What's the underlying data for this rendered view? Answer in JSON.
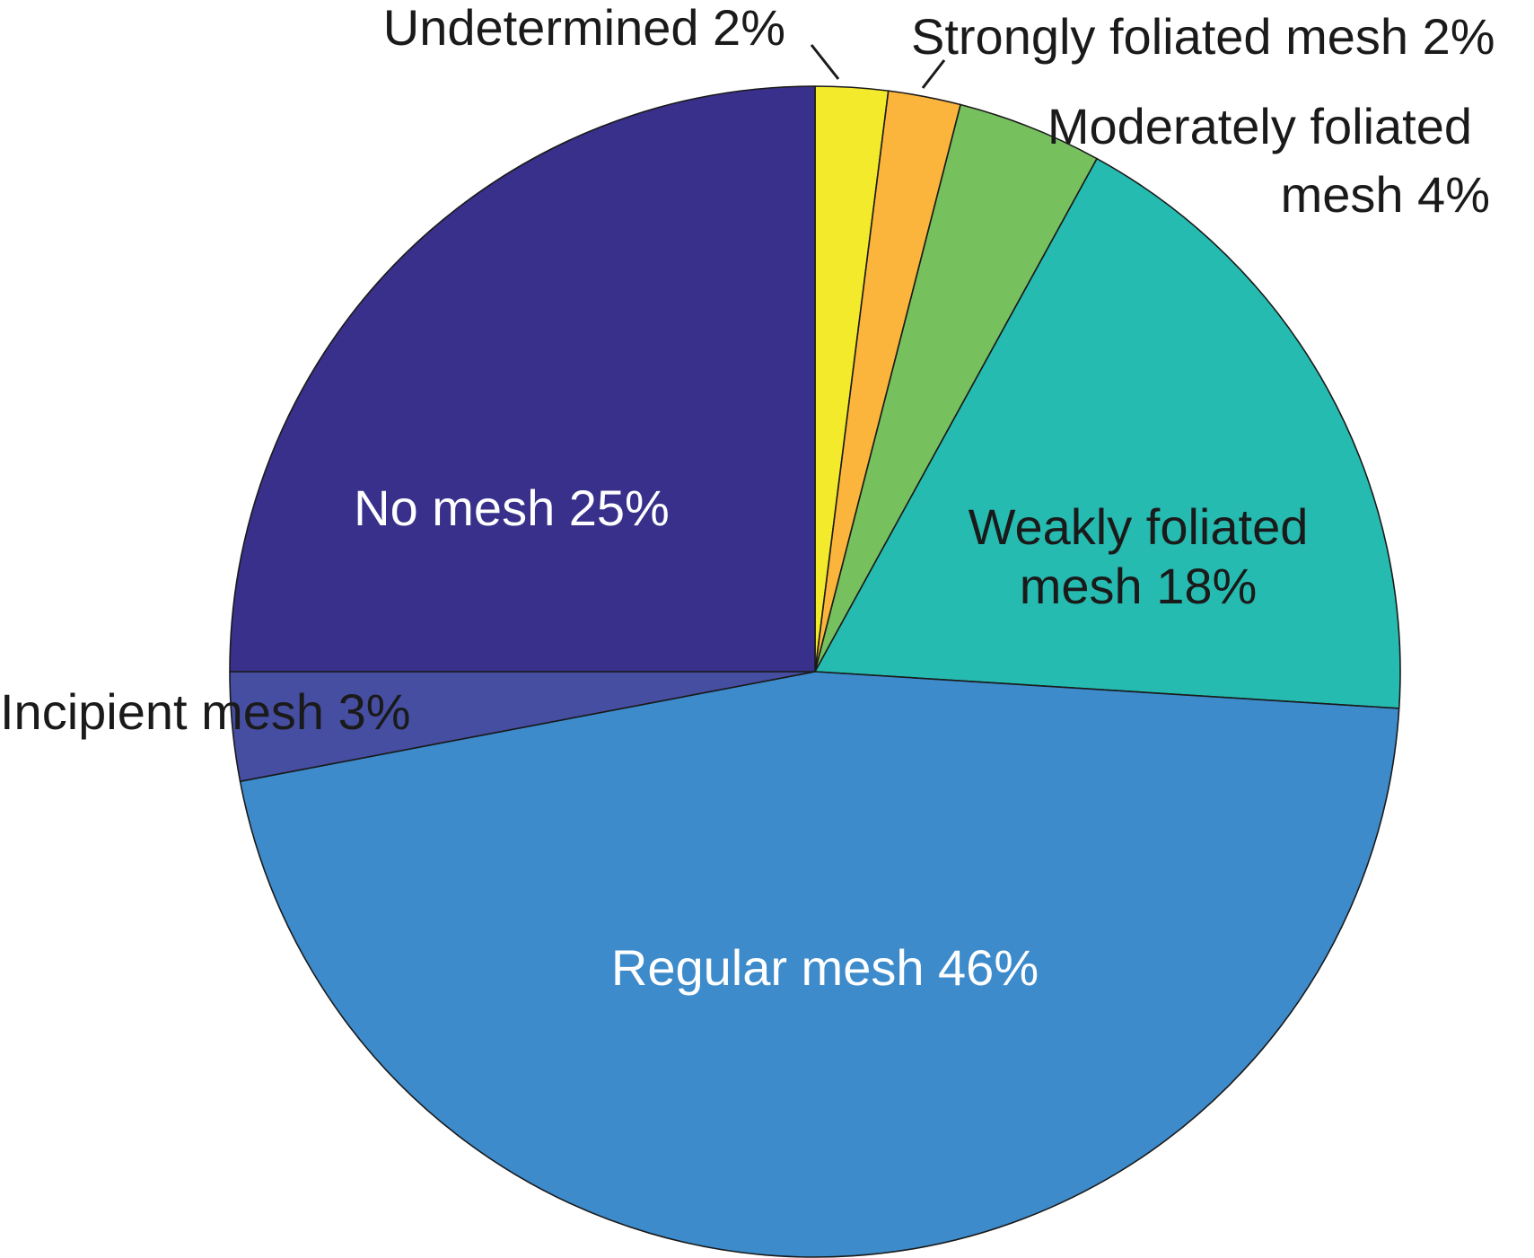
{
  "chart_data": {
    "type": "pie",
    "title": "",
    "slices": [
      {
        "label": "Undetermined",
        "value": 2,
        "value_text": "2%",
        "color": "#f3ea2b",
        "label_color": "#1a1a1a"
      },
      {
        "label": "Strongly foliated mesh",
        "value": 2,
        "value_text": "2%",
        "color": "#fbb53c",
        "label_color": "#1a1a1a"
      },
      {
        "label": "Moderately foliated mesh",
        "value": 4,
        "value_text": "4%",
        "color": "#76c05e",
        "label_color": "#1a1a1a"
      },
      {
        "label": "Weakly foliated mesh",
        "value": 18,
        "value_text": "18%",
        "color": "#26bbb0",
        "label_color": "#1a1a1a"
      },
      {
        "label": "Regular mesh",
        "value": 46,
        "value_text": "46%",
        "color": "#3d8bcb",
        "label_color": "#ffffff"
      },
      {
        "label": "Incipient mesh",
        "value": 3,
        "value_text": "3%",
        "color": "#464ea2",
        "label_color": "#1a1a1a"
      },
      {
        "label": "No mesh",
        "value": 25,
        "value_text": "25%",
        "color": "#38308a",
        "label_color": "#ffffff"
      }
    ],
    "start": "12 o'clock",
    "direction": "clockwise",
    "legend": "none"
  }
}
